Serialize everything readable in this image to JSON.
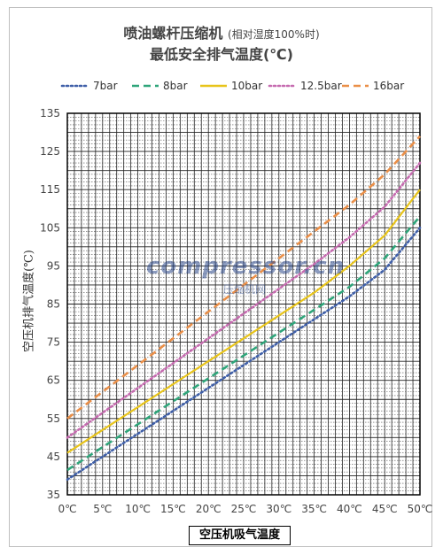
{
  "chart_data": {
    "type": "line",
    "title": "喷油螺杆压缩机",
    "title_note": "(相对湿度100%时)",
    "subtitle": "最低安全排气温度(℃)",
    "xlabel": "空压机吸气温度",
    "ylabel": "空压机排气温度(℃)",
    "x": [
      0,
      5,
      10,
      15,
      20,
      25,
      30,
      35,
      40,
      45,
      50
    ],
    "x_tick_labels": [
      "0℃",
      "5℃",
      "10℃",
      "15℃",
      "20℃",
      "25℃",
      "30℃",
      "35℃",
      "40℃",
      "45℃",
      "50℃"
    ],
    "y_tick_labels": [
      "35",
      "45",
      "55",
      "65",
      "75",
      "85",
      "95",
      "105",
      "115",
      "125",
      "135"
    ],
    "xlim": [
      0,
      50
    ],
    "ylim": [
      35,
      135
    ],
    "grid": true,
    "legend_position": "top",
    "series": [
      {
        "name": "7bar",
        "color": "#3f5fa8",
        "dash": "dotted",
        "values": [
          39,
          45,
          51,
          57,
          63,
          69,
          75,
          81,
          87,
          94,
          105
        ]
      },
      {
        "name": "8bar",
        "color": "#2fa57a",
        "dash": "dashed",
        "values": [
          41.5,
          47.5,
          53.5,
          59.5,
          65.5,
          71.5,
          77.5,
          83.5,
          89.5,
          97,
          108
        ]
      },
      {
        "name": "10bar",
        "color": "#e8c41a",
        "dash": "solid",
        "values": [
          46,
          52,
          58,
          64,
          70,
          76,
          82,
          88,
          95,
          103,
          115
        ]
      },
      {
        "name": "12.5bar",
        "color": "#c66bb0",
        "dash": "dotted",
        "values": [
          50,
          56.5,
          63,
          69.5,
          76,
          82.5,
          89,
          95.5,
          102.5,
          110.5,
          122
        ]
      },
      {
        "name": "16bar",
        "color": "#ea8f48",
        "dash": "dashed",
        "values": [
          55,
          62,
          69,
          76,
          83,
          90,
          97,
          104,
          111,
          119,
          129
        ]
      }
    ]
  },
  "watermark": {
    "main": "compressor.cn",
    "sub": "压缩机网"
  }
}
